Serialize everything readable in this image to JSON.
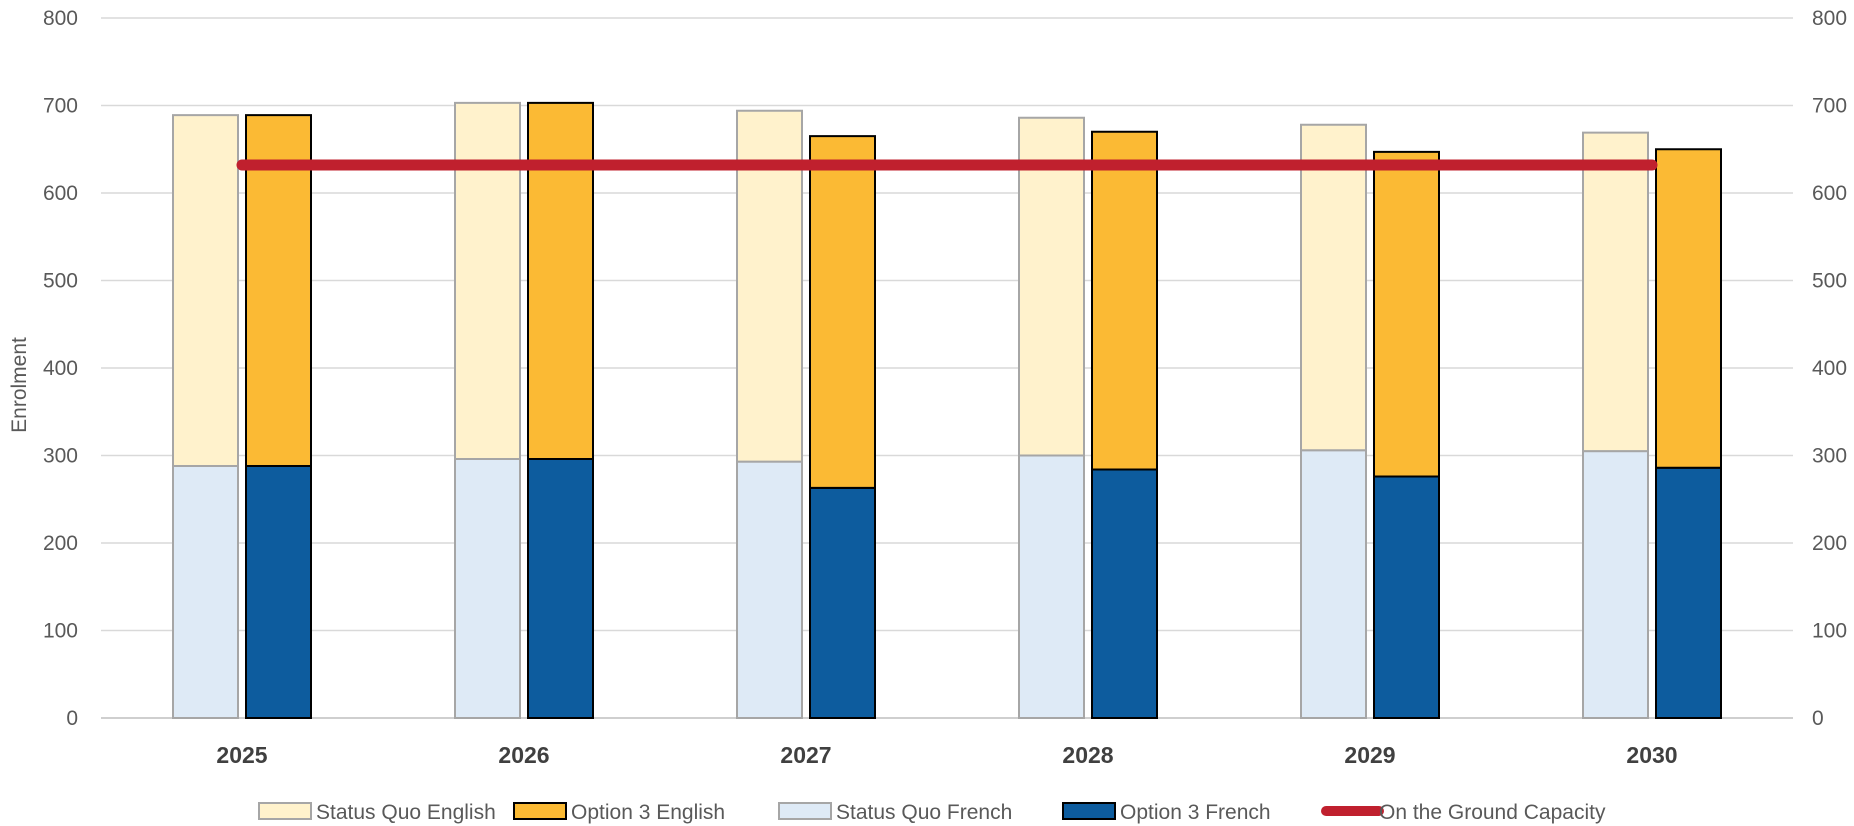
{
  "chart_data": {
    "type": "bar",
    "ylabel": "Enrolment",
    "ylim": [
      0,
      800
    ],
    "yticks": [
      0,
      100,
      200,
      300,
      400,
      500,
      600,
      700,
      800
    ],
    "secondary_axis": true,
    "grid": true,
    "legend_position": "bottom",
    "categories": [
      "2025",
      "2026",
      "2027",
      "2028",
      "2029",
      "2030"
    ],
    "stacks": [
      {
        "name": "Status Quo",
        "series": [
          {
            "name": "Status Quo French",
            "values": [
              288,
              296,
              293,
              300,
              306,
              305
            ],
            "color": "#DEEAF6",
            "stroke": "#A6A6A6"
          },
          {
            "name": "Status Quo English",
            "values": [
              401,
              407,
              401,
              386,
              372,
              364
            ],
            "color": "#FFF2CC",
            "stroke": "#A6A6A6"
          }
        ]
      },
      {
        "name": "Option 3",
        "series": [
          {
            "name": "Option 3 French",
            "values": [
              288,
              296,
              263,
              284,
              276,
              286
            ],
            "color": "#0D5C9E",
            "stroke": "#000000"
          },
          {
            "name": "Option 3 English",
            "values": [
              401,
              407,
              402,
              386,
              371,
              364
            ],
            "color": "#FBBA34",
            "stroke": "#000000"
          }
        ]
      }
    ],
    "line": {
      "name": "On the Ground Capacity",
      "value": 632,
      "color": "#C0202E"
    },
    "legend": [
      {
        "label": "Status Quo English",
        "color": "#FFF2CC",
        "stroke": "#A6A6A6",
        "kind": "box"
      },
      {
        "label": "Option 3 English",
        "color": "#FBBA34",
        "stroke": "#000000",
        "kind": "box"
      },
      {
        "label": "Status Quo French",
        "color": "#DEEAF6",
        "stroke": "#A6A6A6",
        "kind": "box"
      },
      {
        "label": "Option 3 French",
        "color": "#0D5C9E",
        "stroke": "#000000",
        "kind": "box"
      },
      {
        "label": "On the Ground Capacity",
        "color": "#C0202E",
        "kind": "line"
      }
    ]
  }
}
